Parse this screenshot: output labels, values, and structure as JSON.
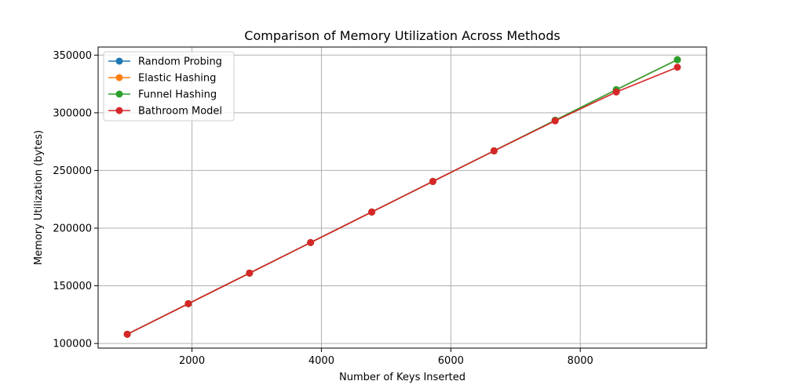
{
  "chart_data": {
    "type": "line",
    "title": "Comparison of Memory Utilization Across Methods",
    "xlabel": "Number of Keys Inserted",
    "ylabel": "Memory Utilization (bytes)",
    "xlim": [
      550,
      9950
    ],
    "ylim": [
      96000,
      357000
    ],
    "xticks": [
      2000,
      4000,
      6000,
      8000
    ],
    "xtick_labels": [
      "2000",
      "4000",
      "6000",
      "8000"
    ],
    "yticks": [
      100000,
      150000,
      200000,
      250000,
      300000,
      350000
    ],
    "ytick_labels": [
      "100000",
      "150000",
      "200000",
      "250000",
      "300000",
      "350000"
    ],
    "grid": true,
    "legend_position": "top-left",
    "x": [
      1000,
      1944,
      2889,
      3833,
      4778,
      5722,
      6667,
      7611,
      8556,
      9500
    ],
    "series": [
      {
        "name": "Random Probing",
        "color": "#1f77b4",
        "values": [
          108000,
          134500,
          161000,
          187500,
          214000,
          240500,
          267000,
          293500,
          320000,
          346000
        ]
      },
      {
        "name": "Elastic Hashing",
        "color": "#ff7f0e",
        "values": [
          108000,
          134500,
          161000,
          187500,
          214000,
          240500,
          267000,
          293500,
          320000,
          346000
        ]
      },
      {
        "name": "Funnel Hashing",
        "color": "#2ca02c",
        "values": [
          108000,
          134500,
          161000,
          187500,
          214000,
          240500,
          267000,
          293500,
          320000,
          346000
        ]
      },
      {
        "name": "Bathroom Model",
        "color": "#d62728",
        "values": [
          108000,
          134500,
          161000,
          187500,
          214000,
          240500,
          267000,
          293000,
          318000,
          339500
        ]
      }
    ]
  }
}
